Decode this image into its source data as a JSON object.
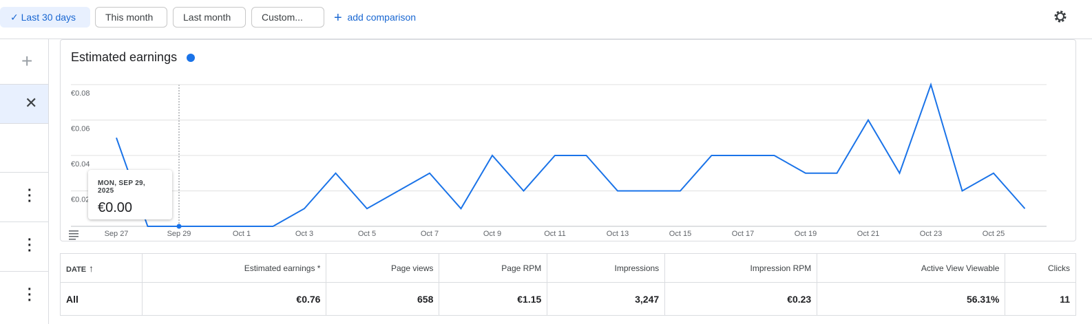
{
  "toolbar": {
    "buttons": [
      "Last 30 days",
      "This month",
      "Last month",
      "Custom..."
    ],
    "comparison": "add comparison"
  },
  "chart_data": {
    "type": "line",
    "categories": [
      "Sep 27",
      null,
      "Sep 29",
      null,
      "Oct 1",
      null,
      "Oct 3",
      null,
      "Oct 5",
      null,
      "Oct 7",
      null,
      "Oct 9",
      null,
      "Oct 11",
      null,
      "Oct 13",
      null,
      "Oct 15",
      null,
      "Oct 17",
      null,
      "Oct 19",
      null,
      "Oct 21",
      null,
      "Oct 23",
      null,
      "Oct 25",
      null
    ],
    "series": [
      {
        "name": "Estimated earnings",
        "color": "#1a73e8",
        "values": [
          0.05,
          0,
          0,
          0,
          0,
          0,
          0.01,
          0.03,
          0.01,
          0.02,
          0.03,
          0.01,
          0.04,
          0.02,
          0.04,
          0.04,
          0.02,
          0.02,
          0.02,
          0.04,
          0.04,
          0.04,
          0.03,
          0.03,
          0.06,
          0.03,
          0.08,
          0.02,
          0.03,
          0.01
        ]
      }
    ],
    "ylim": [
      0,
      0.08
    ],
    "yticks": [
      {
        "value": 0.02,
        "label": "€0.02"
      },
      {
        "value": 0.04,
        "label": "€0.04"
      },
      {
        "value": 0.06,
        "label": "€0.06"
      },
      {
        "value": 0.08,
        "label": "€0.08"
      }
    ],
    "grid": true,
    "tooltip": {
      "date": "MON, SEP 29, 2025",
      "value": "€0.00"
    }
  },
  "table": {
    "headers": [
      "DATE",
      "Estimated earnings *",
      "Page views",
      "Page RPM",
      "Impressions",
      "Impression RPM",
      "Active View Viewable",
      "Clicks"
    ],
    "rows": [
      [
        "All",
        "€0.76",
        "658",
        "€1.15",
        "3,247",
        "€0.23",
        "56.31%",
        "11"
      ]
    ]
  }
}
